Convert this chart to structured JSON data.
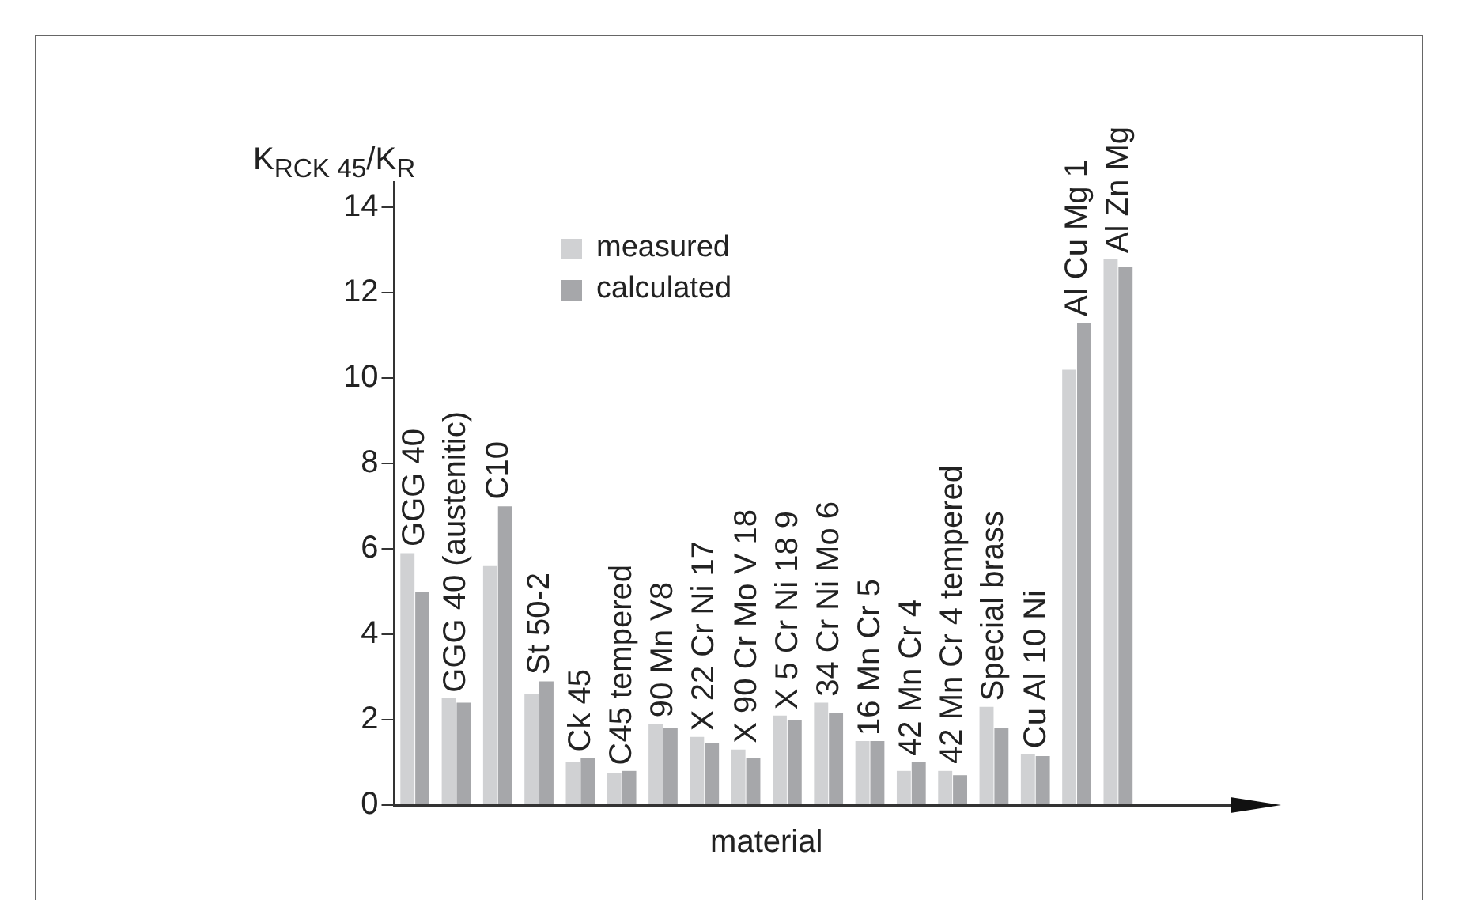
{
  "chart_data": {
    "type": "bar",
    "ylabel": "K$_{RCK 45}$/K$_{R}$",
    "xlabel": "material",
    "categories": [
      "GGG 40",
      "GGG 40 (austenitic)",
      "C10",
      "St 50-2",
      "Ck 45",
      "C45 tempered",
      "90 Mn V8",
      "X 22 Cr Ni 17",
      "X 90 Cr Mo V 18",
      "X 5 Cr Ni 18 9",
      "34 Cr Ni Mo 6",
      "16 Mn Cr 5",
      "42 Mn Cr 4",
      "42 Mn Cr 4 tempered",
      "Special brass",
      "Cu Al 10 Ni",
      "Al Cu Mg 1",
      "Al Zn Mg"
    ],
    "series": [
      {
        "name": "measured",
        "color": "#d0d1d3",
        "values": [
          5.9,
          2.5,
          5.6,
          2.6,
          1.0,
          0.75,
          1.9,
          1.6,
          1.3,
          2.1,
          2.4,
          1.5,
          0.8,
          0.8,
          2.3,
          1.2,
          10.2,
          12.8
        ]
      },
      {
        "name": "calculated",
        "color": "#a6a7aa",
        "values": [
          5.0,
          2.4,
          7.0,
          2.9,
          1.1,
          0.8,
          1.8,
          1.45,
          1.1,
          2.0,
          2.15,
          1.5,
          1.0,
          0.7,
          1.8,
          1.15,
          11.3,
          12.6
        ]
      }
    ],
    "ylim": [
      0,
      14.6
    ],
    "yticks": [
      0,
      2,
      4,
      6,
      8,
      10,
      12,
      14
    ],
    "grid": false,
    "legend": "top left",
    "tick_labels": "y"
  }
}
